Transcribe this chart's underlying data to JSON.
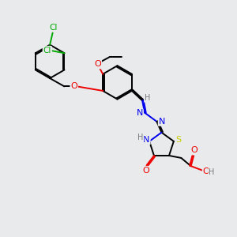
{
  "bg_color": "#e8eaec",
  "atom_colors": {
    "C": "#000000",
    "H": "#7a7a7a",
    "N": "#0000ee",
    "O": "#ee0000",
    "S": "#cccc00",
    "Cl": "#00aa00"
  },
  "figsize": [
    3.0,
    3.0
  ],
  "dpi": 100
}
